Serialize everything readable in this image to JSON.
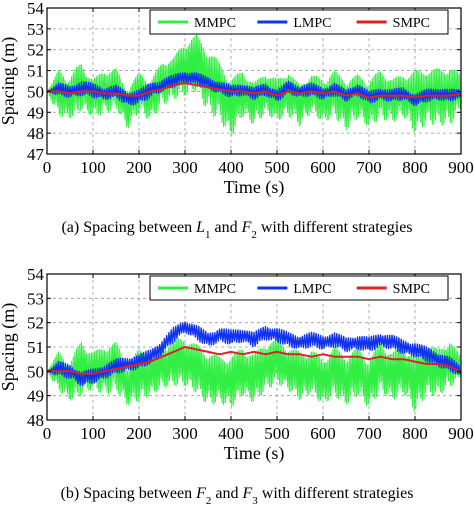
{
  "chart_data": [
    {
      "type": "line",
      "caption": "(a) Spacing between L1 and F2 with different strategies",
      "xlabel": "Time (s)",
      "ylabel": "Spacing (m)",
      "xlim": [
        0,
        900
      ],
      "ylim": [
        47,
        54
      ],
      "xticks": [
        0,
        100,
        200,
        300,
        400,
        500,
        600,
        700,
        800,
        900
      ],
      "yticks": [
        47,
        48,
        49,
        50,
        51,
        52,
        53,
        54
      ],
      "grid": true,
      "legend_position": "top",
      "x": [
        0,
        25,
        50,
        75,
        100,
        125,
        150,
        175,
        200,
        225,
        250,
        275,
        300,
        325,
        350,
        375,
        400,
        425,
        450,
        475,
        500,
        525,
        550,
        575,
        600,
        625,
        650,
        675,
        700,
        725,
        750,
        775,
        800,
        825,
        850,
        875,
        900
      ],
      "series": [
        {
          "name": "MMPC",
          "color": "#33ee44",
          "values": [
            50.0,
            50.2,
            49.6,
            50.3,
            49.9,
            50.4,
            50.1,
            49.3,
            50.5,
            49.8,
            50.8,
            51.0,
            51.4,
            51.8,
            50.9,
            50.4,
            49.5,
            50.2,
            49.8,
            50.3,
            49.5,
            50.5,
            49.9,
            50.2,
            49.6,
            50.4,
            49.8,
            50.1,
            49.5,
            50.3,
            49.9,
            50.2,
            49.7,
            50.4,
            50.0,
            50.3,
            50.0
          ],
          "low": [
            50.0,
            48.8,
            48.7,
            49.1,
            48.8,
            48.9,
            49.2,
            48.2,
            49.0,
            48.6,
            49.3,
            49.6,
            49.8,
            50.0,
            49.0,
            48.6,
            47.8,
            48.8,
            48.4,
            48.9,
            48.6,
            48.8,
            48.3,
            49.0,
            48.5,
            48.8,
            48.1,
            48.7,
            48.3,
            48.7,
            48.5,
            48.8,
            48.0,
            48.4,
            48.4,
            48.3,
            49.2
          ],
          "high": [
            50.0,
            51.0,
            50.8,
            51.4,
            50.6,
            51.0,
            51.1,
            50.1,
            50.9,
            50.5,
            51.4,
            51.6,
            52.4,
            52.7,
            52.0,
            51.4,
            50.6,
            51.0,
            50.4,
            50.9,
            50.6,
            50.9,
            50.3,
            50.8,
            50.6,
            51.0,
            50.5,
            50.8,
            50.6,
            51.0,
            50.6,
            50.8,
            51.0,
            51.0,
            51.1,
            51.2,
            50.8
          ]
        },
        {
          "name": "LMPC",
          "color": "#1133ee",
          "values": [
            50.0,
            50.1,
            50.0,
            50.2,
            50.1,
            49.9,
            50.0,
            49.7,
            49.8,
            50.1,
            50.3,
            50.5,
            50.7,
            50.6,
            50.4,
            50.2,
            50.0,
            50.1,
            49.9,
            50.1,
            49.8,
            50.2,
            50.0,
            50.1,
            49.9,
            50.1,
            49.8,
            50.1,
            49.7,
            49.9,
            49.8,
            49.9,
            49.6,
            49.8,
            49.9,
            49.8,
            49.9
          ],
          "low": [
            50.0,
            49.8,
            49.7,
            49.8,
            49.7,
            49.6,
            49.7,
            49.3,
            49.4,
            49.7,
            50.0,
            50.2,
            50.4,
            50.3,
            50.1,
            49.9,
            49.7,
            49.8,
            49.6,
            49.8,
            49.5,
            49.9,
            49.7,
            49.8,
            49.6,
            49.8,
            49.5,
            49.8,
            49.4,
            49.6,
            49.5,
            49.6,
            49.3,
            49.5,
            49.6,
            49.5,
            49.7
          ],
          "high": [
            50.0,
            50.4,
            50.3,
            50.5,
            50.4,
            50.2,
            50.3,
            50.0,
            50.1,
            50.4,
            50.6,
            50.8,
            51.0,
            50.9,
            50.7,
            50.5,
            50.3,
            50.4,
            50.2,
            50.4,
            50.1,
            50.5,
            50.3,
            50.4,
            50.2,
            50.4,
            50.1,
            50.4,
            50.0,
            50.2,
            50.1,
            50.2,
            49.9,
            50.1,
            50.2,
            50.1,
            50.1
          ]
        },
        {
          "name": "SMPC",
          "color": "#dd2222",
          "values": [
            50.0,
            50.0,
            49.9,
            50.0,
            50.0,
            49.9,
            49.9,
            49.8,
            49.8,
            50.0,
            50.1,
            50.3,
            50.4,
            50.3,
            50.2,
            50.1,
            50.0,
            50.0,
            49.9,
            50.0,
            49.8,
            50.0,
            49.9,
            50.0,
            49.9,
            50.0,
            49.8,
            49.9,
            49.7,
            49.8,
            49.8,
            49.8,
            49.7,
            49.8,
            49.8,
            49.8,
            49.9
          ]
        }
      ]
    },
    {
      "type": "line",
      "caption": "(b) Spacing between F2 and F3 with different strategies",
      "xlabel": "Time (s)",
      "ylabel": "Spacing (m)",
      "xlim": [
        0,
        900
      ],
      "ylim": [
        48,
        54
      ],
      "xticks": [
        0,
        100,
        200,
        300,
        400,
        500,
        600,
        700,
        800,
        900
      ],
      "yticks": [
        48,
        49,
        50,
        51,
        52,
        53,
        54
      ],
      "grid": true,
      "legend_position": "top",
      "x": [
        0,
        25,
        50,
        75,
        100,
        125,
        150,
        175,
        200,
        225,
        250,
        275,
        300,
        325,
        350,
        375,
        400,
        425,
        450,
        475,
        500,
        525,
        550,
        575,
        600,
        625,
        650,
        675,
        700,
        725,
        750,
        775,
        800,
        825,
        850,
        875,
        900
      ],
      "series": [
        {
          "name": "MMPC",
          "color": "#33ee44",
          "values": [
            50.0,
            50.2,
            49.6,
            50.3,
            50.1,
            50.4,
            50.5,
            49.5,
            50.2,
            50.0,
            50.3,
            50.5,
            50.6,
            50.3,
            50.0,
            49.9,
            49.8,
            50.2,
            49.9,
            50.4,
            50.6,
            50.3,
            50.0,
            50.1,
            49.8,
            50.3,
            49.9,
            50.2,
            49.7,
            50.4,
            50.0,
            50.3,
            49.9,
            50.4,
            50.1,
            50.6,
            50.0
          ],
          "low": [
            50.0,
            49.2,
            48.8,
            49.0,
            49.3,
            49.0,
            49.2,
            48.6,
            48.8,
            49.0,
            49.3,
            49.4,
            49.4,
            49.1,
            48.6,
            48.7,
            48.5,
            49.0,
            48.7,
            49.2,
            49.5,
            49.2,
            48.8,
            49.1,
            48.6,
            49.0,
            48.6,
            49.0,
            48.5,
            49.2,
            48.8,
            49.1,
            48.3,
            49.0,
            49.0,
            49.3,
            49.8
          ],
          "high": [
            50.0,
            50.8,
            50.4,
            51.3,
            50.8,
            51.0,
            51.2,
            50.3,
            50.9,
            50.7,
            51.1,
            51.3,
            51.4,
            51.1,
            50.8,
            50.6,
            50.6,
            51.0,
            50.7,
            51.2,
            51.3,
            51.0,
            50.8,
            50.9,
            50.5,
            51.0,
            50.6,
            51.0,
            50.5,
            51.2,
            50.8,
            51.0,
            50.6,
            51.2,
            50.9,
            51.3,
            50.6
          ]
        },
        {
          "name": "LMPC",
          "color": "#1133ee",
          "values": [
            50.0,
            50.1,
            50.0,
            49.7,
            49.8,
            50.0,
            50.2,
            50.3,
            50.4,
            50.6,
            51.0,
            51.5,
            51.9,
            51.6,
            51.3,
            51.5,
            51.4,
            51.5,
            51.3,
            51.6,
            51.5,
            51.3,
            51.2,
            51.3,
            51.2,
            51.3,
            51.1,
            51.2,
            51.1,
            51.3,
            51.2,
            51.0,
            50.9,
            50.7,
            50.5,
            50.3,
            50.0
          ],
          "low": [
            50.0,
            49.8,
            49.7,
            49.4,
            49.5,
            49.7,
            49.9,
            50.0,
            50.1,
            50.3,
            50.7,
            51.2,
            51.6,
            51.3,
            51.0,
            51.2,
            51.1,
            51.2,
            51.0,
            51.3,
            51.2,
            51.0,
            50.9,
            51.0,
            50.9,
            51.0,
            50.8,
            50.9,
            50.8,
            51.0,
            50.9,
            50.7,
            50.6,
            50.4,
            50.2,
            50.0,
            49.8
          ],
          "high": [
            50.0,
            50.4,
            50.3,
            50.0,
            50.1,
            50.3,
            50.5,
            50.6,
            50.7,
            50.9,
            51.3,
            51.8,
            52.1,
            51.9,
            51.6,
            51.8,
            51.7,
            51.8,
            51.6,
            51.9,
            51.8,
            51.6,
            51.5,
            51.6,
            51.5,
            51.6,
            51.4,
            51.5,
            51.4,
            51.6,
            51.5,
            51.3,
            51.2,
            51.0,
            50.8,
            50.6,
            50.2
          ]
        },
        {
          "name": "SMPC",
          "color": "#dd2222",
          "values": [
            50.0,
            50.0,
            50.0,
            49.9,
            49.9,
            50.0,
            50.1,
            50.2,
            50.3,
            50.4,
            50.6,
            50.8,
            51.0,
            50.9,
            50.8,
            50.7,
            50.8,
            50.7,
            50.8,
            50.7,
            50.8,
            50.7,
            50.7,
            50.6,
            50.7,
            50.6,
            50.6,
            50.6,
            50.5,
            50.6,
            50.5,
            50.5,
            50.4,
            50.3,
            50.3,
            50.2,
            50.0
          ]
        }
      ]
    }
  ]
}
